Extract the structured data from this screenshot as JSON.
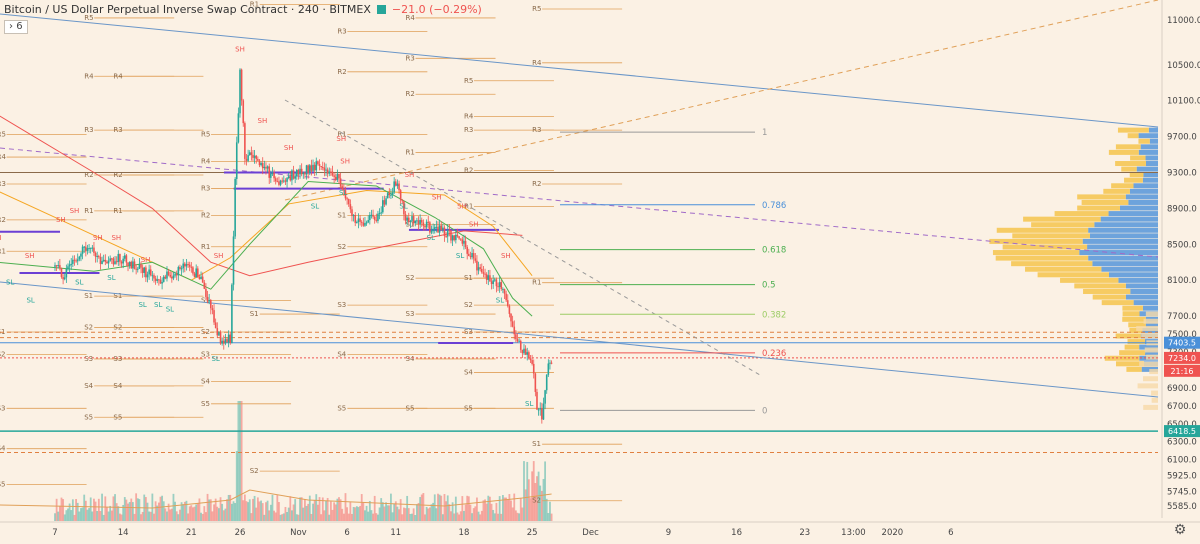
{
  "header": {
    "title": "Bitcoin / US Dollar Perpetual Inverse Swap Contract · 240 · BITMEX",
    "change": "−21.0 (−0.29%)",
    "interval_toggle": "6"
  },
  "colors": {
    "background": "#fbf1e4",
    "up": "#26a69a",
    "down": "#ef5350",
    "pivot_line": "#e0a058",
    "fib_blue": "#4a90d9",
    "fib_green": "#4caf50",
    "fib_yellowgreen": "#9ccc65",
    "fib_red": "#ef5350",
    "volume_profile_blue": "#4a90d9",
    "volume_profile_yellow": "#f5c242"
  },
  "chart_data": {
    "type": "candlestick",
    "symbol": "XBTUSD",
    "exchange": "BITMEX",
    "timeframe": "240",
    "ylim": [
      5450,
      11200
    ],
    "y_ticks": [
      5585.0,
      5745.0,
      5925.0,
      6100.0,
      6300.0,
      6500.0,
      6700.0,
      6900.0,
      7100.0,
      7300.0,
      7500.0,
      7700.0,
      8100.0,
      8500.0,
      8900.0,
      9300.0,
      9700.0,
      10100.0,
      10500.0,
      11000.0
    ],
    "y_tick_labels": [
      "5585.0",
      "5745.0",
      "5925.0",
      "6100.0",
      "6300.0",
      "6500.0",
      "6700.0",
      "6900.0",
      "7100.0",
      "7300.0",
      "7500.0",
      "7700.0",
      "8100.0",
      "8500.0",
      "8900.0",
      "9300.0",
      "9700.0",
      "10100.0",
      "10500.0",
      "11000.0"
    ],
    "x_ticks": [
      {
        "label": "7",
        "day": 0
      },
      {
        "label": "14",
        "day": 7
      },
      {
        "label": "21",
        "day": 14
      },
      {
        "label": "26",
        "day": 19
      },
      {
        "label": "Nov",
        "day": 25
      },
      {
        "label": "6",
        "day": 30
      },
      {
        "label": "11",
        "day": 35
      },
      {
        "label": "18",
        "day": 42
      },
      {
        "label": "25",
        "day": 49
      },
      {
        "label": "Dec",
        "day": 55
      },
      {
        "label": "9",
        "day": 63
      },
      {
        "label": "16",
        "day": 70
      },
      {
        "label": "23",
        "day": 77
      },
      {
        "label": "13:00",
        "day": 82
      },
      {
        "label": "2020",
        "day": 86
      },
      {
        "label": "6",
        "day": 92
      }
    ],
    "price_anchors": [
      [
        0,
        8250
      ],
      [
        1,
        8150
      ],
      [
        3,
        8500
      ],
      [
        5,
        8300
      ],
      [
        7,
        8350
      ],
      [
        9,
        8200
      ],
      [
        11,
        8100
      ],
      [
        13,
        8250
      ],
      [
        15,
        8150
      ],
      [
        17,
        7400
      ],
      [
        18,
        7450
      ],
      [
        18.5,
        9200
      ],
      [
        19,
        10400
      ],
      [
        19.5,
        9500
      ],
      [
        21,
        9400
      ],
      [
        23,
        9200
      ],
      [
        25,
        9300
      ],
      [
        27,
        9400
      ],
      [
        29,
        9250
      ],
      [
        30,
        9000
      ],
      [
        31,
        8750
      ],
      [
        33,
        8800
      ],
      [
        35,
        9200
      ],
      [
        36,
        8800
      ],
      [
        38,
        8700
      ],
      [
        40,
        8650
      ],
      [
        42,
        8500
      ],
      [
        44,
        8150
      ],
      [
        46,
        8000
      ],
      [
        47,
        7600
      ],
      [
        48,
        7300
      ],
      [
        49,
        7200
      ],
      [
        49.5,
        6700
      ],
      [
        50,
        6600
      ],
      [
        50.5,
        7100
      ],
      [
        51,
        7230
      ]
    ],
    "moving_averages": [
      {
        "color": "#ef5350",
        "points": [
          [
            -6,
            9950
          ],
          [
            4,
            9300
          ],
          [
            10,
            8900
          ],
          [
            16,
            8300
          ],
          [
            20,
            8150
          ],
          [
            26,
            8300
          ],
          [
            34,
            8480
          ],
          [
            42,
            8650
          ],
          [
            48,
            8600
          ]
        ]
      },
      {
        "color": "#f5a623",
        "points": [
          [
            -6,
            9100
          ],
          [
            2,
            8700
          ],
          [
            8,
            8400
          ],
          [
            14,
            8100
          ],
          [
            18,
            8350
          ],
          [
            24,
            8950
          ],
          [
            32,
            9100
          ],
          [
            40,
            9050
          ],
          [
            45,
            8700
          ],
          [
            49,
            8150
          ]
        ]
      },
      {
        "color": "#4caf50",
        "points": [
          [
            -6,
            8300
          ],
          [
            4,
            8200
          ],
          [
            10,
            8300
          ],
          [
            16,
            8000
          ],
          [
            20,
            8500
          ],
          [
            26,
            9200
          ],
          [
            33,
            9150
          ],
          [
            39,
            8800
          ],
          [
            44,
            8450
          ],
          [
            47,
            7900
          ],
          [
            49,
            7700
          ]
        ]
      }
    ],
    "fib_levels": [
      {
        "label": "1",
        "price": 9750,
        "color": "#999999"
      },
      {
        "label": "0.786",
        "price": 8940,
        "color": "#4a90d9"
      },
      {
        "label": "0.618",
        "price": 8440,
        "color": "#4caf50"
      },
      {
        "label": "0.5",
        "price": 8050,
        "color": "#4caf50"
      },
      {
        "label": "0.382",
        "price": 7720,
        "color": "#9ccc65"
      },
      {
        "label": "0.236",
        "price": 7290,
        "color": "#ef5350"
      },
      {
        "label": "0",
        "price": 6650,
        "color": "#999999"
      }
    ],
    "pivot_labels": [
      {
        "text": "R5",
        "day": 3,
        "price": 11000
      },
      {
        "text": "R4",
        "day": 3,
        "price": 10350
      },
      {
        "text": "R3",
        "day": 3,
        "price": 9750
      },
      {
        "text": "R2",
        "day": 3,
        "price": 9250
      },
      {
        "text": "R1",
        "day": 3,
        "price": 8850
      },
      {
        "text": "S1",
        "day": 3,
        "price": 7900
      },
      {
        "text": "S2",
        "day": 3,
        "price": 7550
      },
      {
        "text": "S3",
        "day": 3,
        "price": 7200
      },
      {
        "text": "S4",
        "day": 3,
        "price": 6900
      },
      {
        "text": "S5",
        "day": 3,
        "price": 6550
      },
      {
        "text": "R5",
        "day": -6,
        "price": 9700
      },
      {
        "text": "R4",
        "day": -6,
        "price": 9450
      },
      {
        "text": "R3",
        "day": -6,
        "price": 9150
      },
      {
        "text": "R2",
        "day": -6,
        "price": 8750
      },
      {
        "text": "R1",
        "day": -6,
        "price": 8400
      },
      {
        "text": "S1",
        "day": -6,
        "price": 7500
      },
      {
        "text": "S2",
        "day": -6,
        "price": 7250
      },
      {
        "text": "S3",
        "day": -6,
        "price": 6650
      },
      {
        "text": "S4",
        "day": -6,
        "price": 6200
      },
      {
        "text": "S5",
        "day": -6,
        "price": 5800
      },
      {
        "text": "R4",
        "day": 6,
        "price": 10350
      },
      {
        "text": "R3",
        "day": 6,
        "price": 9750
      },
      {
        "text": "R2",
        "day": 6,
        "price": 9250
      },
      {
        "text": "R1",
        "day": 6,
        "price": 8850
      },
      {
        "text": "S1",
        "day": 6,
        "price": 7900
      },
      {
        "text": "S2",
        "day": 6,
        "price": 7550
      },
      {
        "text": "S3",
        "day": 6,
        "price": 7200
      },
      {
        "text": "S4",
        "day": 6,
        "price": 6900
      },
      {
        "text": "S5",
        "day": 6,
        "price": 6550
      },
      {
        "text": "R5",
        "day": 15,
        "price": 9700
      },
      {
        "text": "R4",
        "day": 15,
        "price": 9400
      },
      {
        "text": "R3",
        "day": 15,
        "price": 9100
      },
      {
        "text": "R2",
        "day": 15,
        "price": 8800
      },
      {
        "text": "R1",
        "day": 15,
        "price": 8450
      },
      {
        "text": "S1",
        "day": 15,
        "price": 7850
      },
      {
        "text": "S2",
        "day": 15,
        "price": 7500
      },
      {
        "text": "S3",
        "day": 15,
        "price": 7250
      },
      {
        "text": "S4",
        "day": 15,
        "price": 6950
      },
      {
        "text": "S5",
        "day": 15,
        "price": 6700
      },
      {
        "text": "R1",
        "day": 20,
        "price": 11150
      },
      {
        "text": "S1",
        "day": 20,
        "price": 7700
      },
      {
        "text": "S2",
        "day": 20,
        "price": 5950
      },
      {
        "text": "R3",
        "day": 29,
        "price": 10850
      },
      {
        "text": "R2",
        "day": 29,
        "price": 10400
      },
      {
        "text": "R1",
        "day": 29,
        "price": 9700
      },
      {
        "text": "S1",
        "day": 29,
        "price": 8800
      },
      {
        "text": "S2",
        "day": 29,
        "price": 8450
      },
      {
        "text": "S3",
        "day": 29,
        "price": 7800
      },
      {
        "text": "S4",
        "day": 29,
        "price": 7250
      },
      {
        "text": "S5",
        "day": 29,
        "price": 6650
      },
      {
        "text": "R4",
        "day": 36,
        "price": 11000
      },
      {
        "text": "R3",
        "day": 36,
        "price": 10550
      },
      {
        "text": "R2",
        "day": 36,
        "price": 10150
      },
      {
        "text": "R1",
        "day": 36,
        "price": 9500
      },
      {
        "text": "S1",
        "day": 36,
        "price": 8700
      },
      {
        "text": "S2",
        "day": 36,
        "price": 8100
      },
      {
        "text": "S3",
        "day": 36,
        "price": 7700
      },
      {
        "text": "S4",
        "day": 36,
        "price": 7200
      },
      {
        "text": "S5",
        "day": 36,
        "price": 6650
      },
      {
        "text": "R5",
        "day": 42,
        "price": 10300
      },
      {
        "text": "R4",
        "day": 42,
        "price": 9900
      },
      {
        "text": "R3",
        "day": 42,
        "price": 9750
      },
      {
        "text": "R2",
        "day": 42,
        "price": 9300
      },
      {
        "text": "R1",
        "day": 42,
        "price": 8900
      },
      {
        "text": "S1",
        "day": 42,
        "price": 8100
      },
      {
        "text": "S2",
        "day": 42,
        "price": 7800
      },
      {
        "text": "S3",
        "day": 42,
        "price": 7500
      },
      {
        "text": "S4",
        "day": 42,
        "price": 7050
      },
      {
        "text": "S5",
        "day": 42,
        "price": 6650
      },
      {
        "text": "R5",
        "day": 49,
        "price": 11100
      },
      {
        "text": "R4",
        "day": 49,
        "price": 10500
      },
      {
        "text": "R3",
        "day": 49,
        "price": 9750
      },
      {
        "text": "R2",
        "day": 49,
        "price": 9150
      },
      {
        "text": "R1",
        "day": 49,
        "price": 8050
      },
      {
        "text": "S1",
        "day": 49,
        "price": 6250
      },
      {
        "text": "S2",
        "day": 49,
        "price": 5620
      }
    ],
    "swing_labels": [
      {
        "text": "SH",
        "day": -6,
        "price": 8550
      },
      {
        "text": "SL",
        "day": -4.6,
        "price": 8050
      },
      {
        "text": "SH",
        "day": -2.6,
        "price": 8350
      },
      {
        "text": "SL",
        "day": -2.5,
        "price": 7850
      },
      {
        "text": "SH",
        "day": 0.6,
        "price": 8750
      },
      {
        "text": "SH",
        "day": 2,
        "price": 8850
      },
      {
        "text": "SL",
        "day": 2.5,
        "price": 8050
      },
      {
        "text": "SH",
        "day": 4.4,
        "price": 8550
      },
      {
        "text": "SH",
        "day": 6.3,
        "price": 8550
      },
      {
        "text": "SL",
        "day": 5.8,
        "price": 8100
      },
      {
        "text": "SH",
        "day": 9.3,
        "price": 8300
      },
      {
        "text": "SL",
        "day": 9,
        "price": 7800
      },
      {
        "text": "SL",
        "day": 10.6,
        "price": 7800
      },
      {
        "text": "SL",
        "day": 11.8,
        "price": 7750
      },
      {
        "text": "SH",
        "day": 16.8,
        "price": 8350
      },
      {
        "text": "SL",
        "day": 16.5,
        "price": 7200
      },
      {
        "text": "SH",
        "day": 19,
        "price": 10650
      },
      {
        "text": "SH",
        "day": 21.3,
        "price": 9850
      },
      {
        "text": "SH",
        "day": 24,
        "price": 9550
      },
      {
        "text": "SL",
        "day": 26.7,
        "price": 8900
      },
      {
        "text": "SH",
        "day": 29.4,
        "price": 9650
      },
      {
        "text": "SH",
        "day": 29.8,
        "price": 9400
      },
      {
        "text": "SL",
        "day": 29.6,
        "price": 9050
      },
      {
        "text": "SH",
        "day": 36.4,
        "price": 9250
      },
      {
        "text": "SL",
        "day": 35.8,
        "price": 8900
      },
      {
        "text": "SH",
        "day": 39.2,
        "price": 9000
      },
      {
        "text": "SL",
        "day": 38.6,
        "price": 8550
      },
      {
        "text": "SH",
        "day": 41.8,
        "price": 8900
      },
      {
        "text": "SL",
        "day": 41.6,
        "price": 8350
      },
      {
        "text": "SH",
        "day": 43,
        "price": 8700
      },
      {
        "text": "SH",
        "day": 46.3,
        "price": 8350
      },
      {
        "text": "SL",
        "day": 45.7,
        "price": 7850
      },
      {
        "text": "SL",
        "day": 48.7,
        "price": 6700
      }
    ],
    "price_tags": [
      {
        "text": "7403.5",
        "price": 7403.5,
        "color": "#4a90d9"
      },
      {
        "text": "7234.0",
        "price": 7234.0,
        "color": "#ef5350"
      },
      {
        "text": "21:16",
        "price": 7090,
        "color": "#ef5350"
      },
      {
        "text": "6418.5",
        "price": 6418.5,
        "color": "#26a69a"
      }
    ]
  }
}
